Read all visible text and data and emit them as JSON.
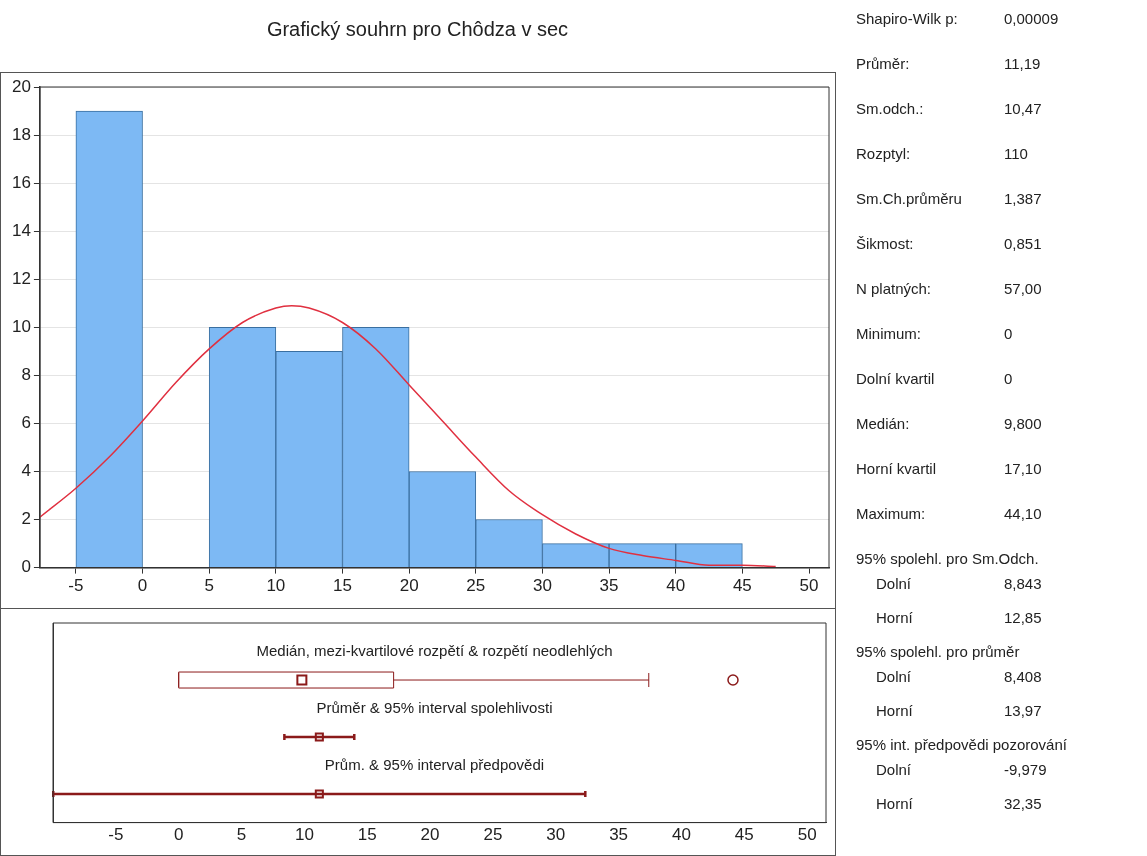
{
  "chart_data": [
    {
      "type": "histogram",
      "title": "Grafický souhrn pro Chôdza v sec",
      "bins": [
        -5,
        0,
        5,
        10,
        15,
        20,
        25,
        30,
        35,
        40,
        45
      ],
      "values": [
        19,
        0,
        10,
        9,
        10,
        4,
        2,
        1,
        1,
        1
      ],
      "color": "#7db9f4",
      "xlim": [
        -7.7,
        51.5
      ],
      "xticks": [
        -5,
        0,
        5,
        10,
        15,
        20,
        25,
        30,
        35,
        40,
        45,
        50
      ],
      "ylim": [
        0,
        20
      ],
      "yticks": [
        0,
        2,
        4,
        6,
        8,
        10,
        12,
        14,
        16,
        18,
        20
      ],
      "grid": "y",
      "series": [
        {
          "type": "line",
          "color": "#e03040",
          "x": [
            -7.7,
            -5,
            -2.5,
            0,
            2.5,
            5,
            7.5,
            10,
            11.19,
            12.5,
            15,
            17.5,
            20,
            22.5,
            25,
            27.5,
            30,
            32.5,
            35,
            37.5,
            40,
            42.5,
            45,
            47.5
          ],
          "values": [
            2.1,
            3.3,
            4.6,
            6.1,
            7.7,
            9.1,
            10.2,
            10.8,
            10.9,
            10.8,
            10.2,
            9.1,
            7.6,
            6.1,
            4.6,
            3.2,
            2.2,
            1.4,
            0.8,
            0.5,
            0.3,
            0.1,
            0.1,
            0.05
          ]
        }
      ]
    },
    {
      "type": "box",
      "orientation": "horizontal",
      "categories": [
        null,
        null,
        null
      ],
      "annotations": [
        "Medián, mezi-kvartilové rozpětí & rozpětí neodlehlých",
        "Průměr & 95% interval spolehlivosti",
        "Prům. & 95% interval předpovědi"
      ],
      "xlim": [
        -10,
        51.5
      ],
      "xticks": [
        -5,
        0,
        5,
        10,
        15,
        20,
        25,
        30,
        35,
        40,
        45,
        50
      ],
      "tick_labels": "x",
      "marker": "square",
      "series": [
        {
          "type": "box",
          "color": "#8b1a1a",
          "boxes": [
            {
              "low": 0,
              "q1": 0,
              "median": 9.8,
              "q3": 17.1,
              "high": 37.4,
              "outliers": [
                44.1
              ]
            },
            null,
            null
          ]
        },
        {
          "type": "scatter",
          "color": "#8b1a1a",
          "values": [
            null,
            11.19,
            11.19
          ],
          "errors": [
            null,
            [
              8.408,
              13.97
            ],
            [
              -9.979,
              32.35
            ]
          ]
        }
      ]
    },
    {
      "type": "other",
      "annotations": [
        "Shapiro-Wilk p:\t0,00009",
        "Průměr:\t11,19",
        "Sm.odch.:\t10,47",
        "Rozptyl:\t110",
        "Sm.Ch.průměru\t1,387",
        "Šikmost:\t0,851",
        "N platných:\t57,00",
        "Minimum:\t0",
        "Dolní kvartil\t0",
        "Medián:\t9,800",
        "Horní kvartil\t17,10",
        "Maximum:\t44,10",
        "95% spolehl. pro Sm.Odch.",
        "Dolní\t8,843",
        "Horní\t12,85",
        "95% spolehl. pro průměr",
        "Dolní\t8,408",
        "Horní\t13,97",
        "95% int. předpovědi pozorování",
        "Dolní\t-9,979",
        "Horní\t32,35"
      ]
    }
  ]
}
